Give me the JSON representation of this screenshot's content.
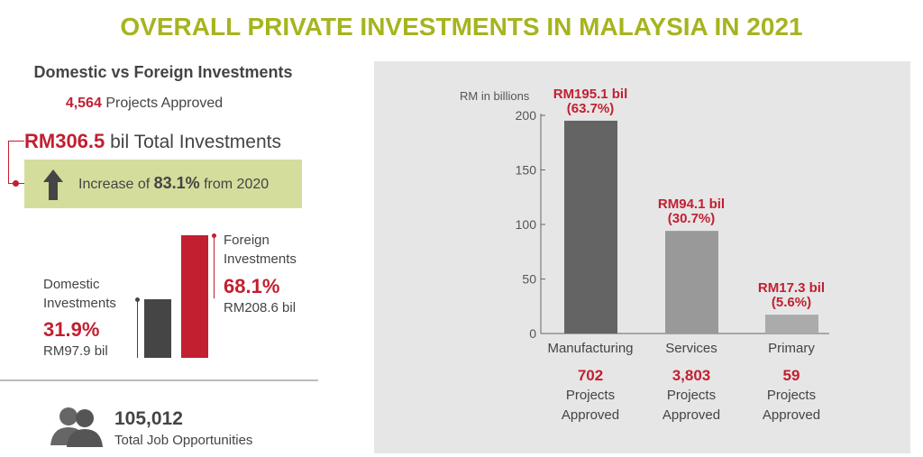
{
  "title": "OVERALL PRIVATE INVESTMENTS IN MALAYSIA IN 2021",
  "left": {
    "subtitle": "Domestic vs Foreign Investments",
    "projects_value": "4,564",
    "projects_label": "Projects Approved",
    "total_value": "RM306.5",
    "total_label": "bil Total Investments",
    "increase_prefix": "Increase of",
    "increase_value": "83.1%",
    "increase_suffix": "from 2020",
    "domestic": {
      "label1": "Domestic",
      "label2": "Investments",
      "pct": "31.9%",
      "amount": "RM97.9 bil",
      "share": 31.9
    },
    "foreign": {
      "label1": "Foreign",
      "label2": "Investments",
      "pct": "68.1%",
      "amount": "RM208.6 bil",
      "share": 68.1
    },
    "jobs_value": "105,012",
    "jobs_label": "Total Job Opportunities"
  },
  "colors": {
    "accent": "#a6b41e",
    "red": "#c21f30",
    "manufacturing": "#646464",
    "services": "#999999",
    "primary": "#ababab"
  },
  "chart_data": {
    "type": "bar",
    "ylabel": "RM in billions",
    "ylim": [
      0,
      200
    ],
    "yticks": [
      "0",
      "50",
      "100",
      "150",
      "200"
    ],
    "categories": [
      "Manufacturing",
      "Services",
      "Primary"
    ],
    "values": [
      195.1,
      94.1,
      17.3
    ],
    "data_labels": [
      [
        "RM195.1 bil",
        "(63.7%)"
      ],
      [
        "RM94.1 bil",
        "(30.7%)"
      ],
      [
        "RM17.3 bil",
        "(5.6%)"
      ]
    ],
    "projects": [
      "702",
      "3,803",
      "59"
    ],
    "projects_label1": "Projects",
    "projects_label2": "Approved"
  }
}
